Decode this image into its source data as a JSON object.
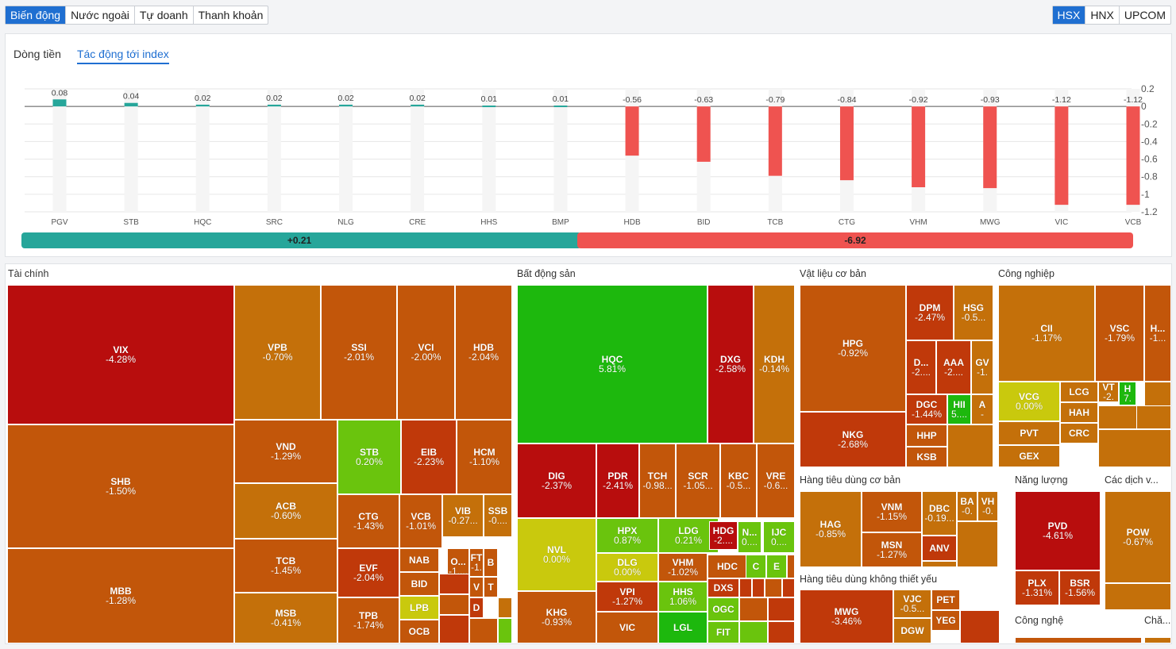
{
  "tabs": [
    "Biến động",
    "Nước ngoài",
    "Tự doanh",
    "Thanh khoản"
  ],
  "markets": [
    "HSX",
    "HNX",
    "UPCOM"
  ],
  "subtabs": [
    "Dòng tiền",
    "Tác động tới index"
  ],
  "chart_data": {
    "type": "bar",
    "categories": [
      "PGV",
      "STB",
      "HQC",
      "SRC",
      "NLG",
      "CRE",
      "HHS",
      "BMP",
      "HDB",
      "BID",
      "TCB",
      "CTG",
      "VHM",
      "MWG",
      "VIC",
      "VCB"
    ],
    "values": [
      0.08,
      0.04,
      0.02,
      0.02,
      0.02,
      0.02,
      0.01,
      0.01,
      -0.56,
      -0.63,
      -0.79,
      -0.84,
      -0.92,
      -0.93,
      -1.12,
      -1.12
    ],
    "value_labels": [
      "0.08",
      "0.04",
      "0.02",
      "0.02",
      "0.02",
      "0.02",
      "0.01",
      "0.01",
      "-0.56",
      "-0.63",
      "-0.79",
      "-0.84",
      "-0.92",
      "-0.93",
      "-1.12",
      "-1.12"
    ],
    "y_ticks": [
      "0.2",
      "0",
      "-0.2",
      "-0.4",
      "-0.6",
      "-0.8",
      "-1",
      "-1.2"
    ],
    "ylim": [
      -1.2,
      0.2
    ],
    "positive_color": "#26a69a",
    "negative_color": "#ef5350",
    "summary_positive": "+0.21",
    "summary_negative": "-6.92",
    "summary_positive_value": 0.21,
    "summary_negative_value": 6.92
  },
  "sectors": {
    "tai_chinh": "Tài chính",
    "bat_dong_san": "Bất động sản",
    "vat_lieu": "Vật liệu cơ bản",
    "cong_nghiep": "Công nghiệp",
    "tieu_dung_co_ban": "Hàng tiêu dùng cơ bản",
    "nang_luong": "Năng lượng",
    "cac_dich_vu": "Các dịch v...",
    "tieu_dung_khong_thiet_yeu": "Hàng tiêu dùng không thiết yếu",
    "cong_nghe": "Công nghệ",
    "cham_soc": "Chă..."
  },
  "tiles": {
    "VIX": [
      "VIX",
      "-4.28%"
    ],
    "SHB": [
      "SHB",
      "-1.50%"
    ],
    "MBB": [
      "MBB",
      "-1.28%"
    ],
    "VPB": [
      "VPB",
      "-0.70%"
    ],
    "SSI": [
      "SSI",
      "-2.01%"
    ],
    "VCI": [
      "VCI",
      "-2.00%"
    ],
    "HDB": [
      "HDB",
      "-2.04%"
    ],
    "VND": [
      "VND",
      "-1.29%"
    ],
    "STB": [
      "STB",
      "0.20%"
    ],
    "EIB": [
      "EIB",
      "-2.23%"
    ],
    "HCM": [
      "HCM",
      "-1.10%"
    ],
    "ACB": [
      "ACB",
      "-0.60%"
    ],
    "CTG": [
      "CTG",
      "-1.43%"
    ],
    "VCB": [
      "VCB",
      "-1.01%"
    ],
    "VIB": [
      "VIB",
      "-0.27..."
    ],
    "SSB": [
      "SSB",
      "-0...."
    ],
    "TCB": [
      "TCB",
      "-1.45%"
    ],
    "EVF": [
      "EVF",
      "-2.04%"
    ],
    "NAB": [
      "NAB",
      ""
    ],
    "O": [
      "O...",
      "-1...."
    ],
    "FT": [
      "FT",
      "-1."
    ],
    "B": [
      "B",
      ""
    ],
    "BID": [
      "BID",
      ""
    ],
    "V": [
      "V",
      ""
    ],
    "T": [
      "T",
      ""
    ],
    "MSB": [
      "MSB",
      "-0.41%"
    ],
    "TPB": [
      "TPB",
      "-1.74%"
    ],
    "LPB": [
      "LPB",
      ""
    ],
    "D": [
      "D",
      ""
    ],
    "OCB": [
      "OCB",
      ""
    ],
    "HQC": [
      "HQC",
      "5.81%"
    ],
    "DXG": [
      "DXG",
      "-2.58%"
    ],
    "KDH": [
      "KDH",
      "-0.14%"
    ],
    "DIG": [
      "DIG",
      "-2.37%"
    ],
    "PDR": [
      "PDR",
      "-2.41%"
    ],
    "TCH": [
      "TCH",
      "-0.98..."
    ],
    "SCR": [
      "SCR",
      "-1.05..."
    ],
    "KBC": [
      "KBC",
      "-0.5..."
    ],
    "VRE": [
      "VRE",
      "-0.6..."
    ],
    "NVL": [
      "NVL",
      "0.00%"
    ],
    "HPX": [
      "HPX",
      "0.87%"
    ],
    "LDG": [
      "LDG",
      "0.21%"
    ],
    "HDG": [
      "HDG",
      "-2...."
    ],
    "N": [
      "N...",
      "0...."
    ],
    "IJC": [
      "IJC",
      "0...."
    ],
    "DLG": [
      "DLG",
      "0.00%"
    ],
    "VHM": [
      "VHM",
      "-1.02%"
    ],
    "HDC": [
      "HDC",
      ""
    ],
    "C": [
      "C",
      ""
    ],
    "E": [
      "E",
      ""
    ],
    "KHG": [
      "KHG",
      "-0.93%"
    ],
    "VPI": [
      "VPI",
      "-1.27%"
    ],
    "HHS": [
      "HHS",
      "1.06%"
    ],
    "DXS": [
      "DXS",
      ""
    ],
    "VIC": [
      "VIC",
      ""
    ],
    "LGL": [
      "LGL",
      ""
    ],
    "OGC": [
      "OGC",
      ""
    ],
    "FIT": [
      "FIT",
      ""
    ],
    "HPG": [
      "HPG",
      "-0.92%"
    ],
    "DPM": [
      "DPM",
      "-2.47%"
    ],
    "HSG": [
      "HSG",
      "-0.5..."
    ],
    "Dx": [
      "D...",
      "-2...."
    ],
    "AAA": [
      "AAA",
      "-2...."
    ],
    "GV": [
      "GV",
      "-1."
    ],
    "DGC": [
      "DGC",
      "-1.44%"
    ],
    "HII": [
      "HII",
      "5...."
    ],
    "A": [
      "A",
      "-"
    ],
    "NKG": [
      "NKG",
      "-2.68%"
    ],
    "HHP": [
      "HHP",
      ""
    ],
    "KSB": [
      "KSB",
      ""
    ],
    "CII": [
      "CII",
      "-1.17%"
    ],
    "VSC": [
      "VSC",
      "-1.79%"
    ],
    "Hx": [
      "H...",
      "-1..."
    ],
    "VCG": [
      "VCG",
      "0.00%"
    ],
    "LCG": [
      "LCG",
      ""
    ],
    "VT": [
      "VT",
      "-2."
    ],
    "H7": [
      "H",
      "7."
    ],
    "HAH": [
      "HAH",
      ""
    ],
    "PVT": [
      "PVT",
      ""
    ],
    "CRC": [
      "CRC",
      ""
    ],
    "GEX": [
      "GEX",
      ""
    ],
    "HAG": [
      "HAG",
      "-0.85%"
    ],
    "VNM": [
      "VNM",
      "-1.15%"
    ],
    "DBC": [
      "DBC",
      "-0.19..."
    ],
    "BA": [
      "BA",
      "-0."
    ],
    "VH": [
      "VH",
      "-0."
    ],
    "MSN": [
      "MSN",
      "-1.27%"
    ],
    "ANV": [
      "ANV",
      ""
    ],
    "PVD": [
      "PVD",
      "-4.61%"
    ],
    "PLX": [
      "PLX",
      "-1.31%"
    ],
    "BSR": [
      "BSR",
      "-1.56%"
    ],
    "POW": [
      "POW",
      "-0.67%"
    ],
    "MWG": [
      "MWG",
      "-3.46%"
    ],
    "VJC": [
      "VJC",
      "-0.5..."
    ],
    "PET": [
      "PET",
      ""
    ],
    "YEG": [
      "YEG",
      ""
    ],
    "DGW": [
      "DGW",
      ""
    ]
  }
}
